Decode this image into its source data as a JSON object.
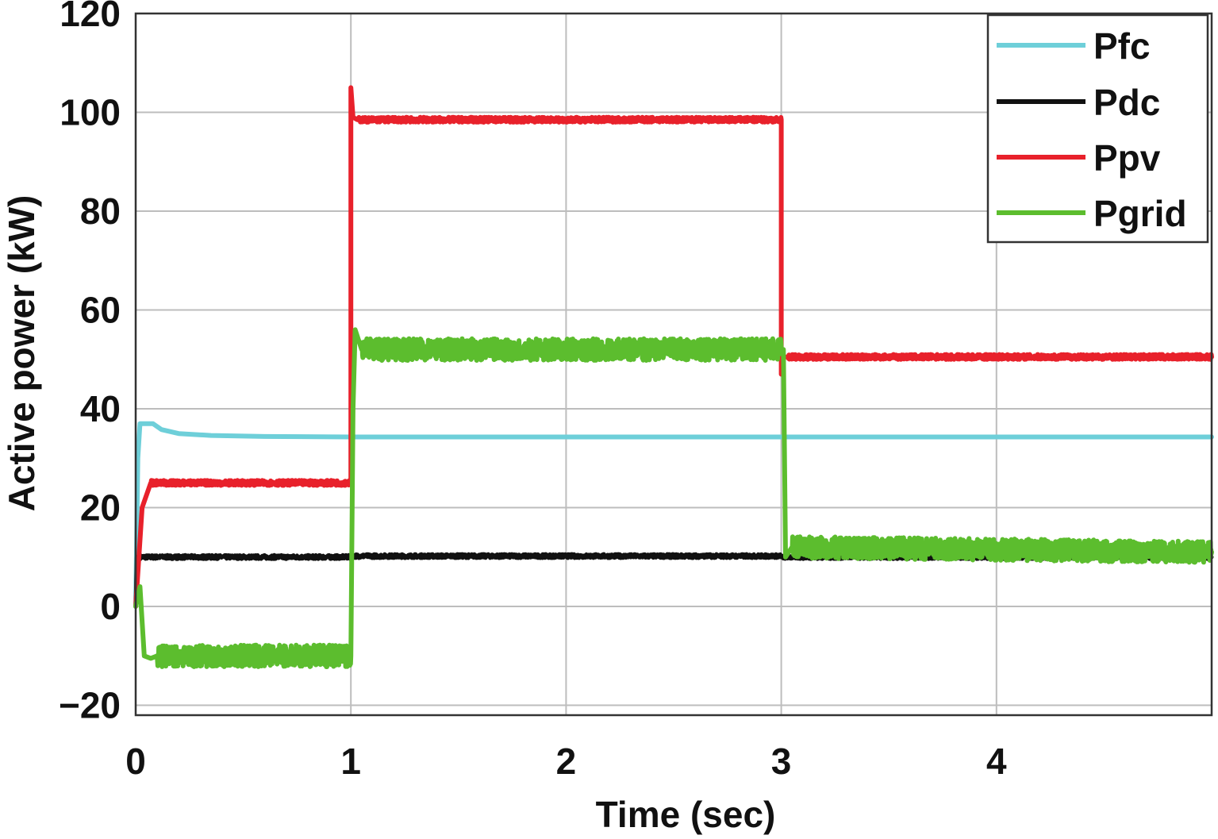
{
  "chart_data": {
    "type": "line",
    "title": "",
    "xlabel": "Time (sec)",
    "ylabel": "Active power (kW)",
    "xlim": [
      0,
      5
    ],
    "ylim": [
      -22,
      120
    ],
    "xticks": [
      0,
      1,
      2,
      3,
      4
    ],
    "yticks": [
      -20,
      0,
      20,
      40,
      60,
      80,
      100,
      120
    ],
    "ytick_labels": [
      "−20",
      "0",
      "20",
      "40",
      "60",
      "80",
      "100",
      "120"
    ],
    "grid": true,
    "legend_position": "top-right",
    "series": [
      {
        "name": "Pfc",
        "color": "#6ecfd9",
        "noise": 0,
        "x": [
          0,
          0.01,
          0.02,
          0.08,
          0.12,
          0.2,
          0.35,
          0.6,
          1.0,
          2.0,
          3.0,
          4.0,
          5.0
        ],
        "y": [
          0,
          30,
          37,
          37,
          35.8,
          35,
          34.6,
          34.4,
          34.3,
          34.3,
          34.3,
          34.3,
          34.3
        ]
      },
      {
        "name": "Pdc",
        "color": "#111111",
        "noise": 0.4,
        "x": [
          0,
          0.005,
          0.02,
          1.0,
          1.01,
          3.0,
          3.005,
          5.0
        ],
        "y": [
          0,
          10,
          10,
          10,
          10.2,
          10.2,
          10,
          10
        ]
      },
      {
        "name": "Ppv",
        "color": "#e8212b",
        "noise": 0.5,
        "x": [
          0,
          0.03,
          0.07,
          1.0,
          1.0,
          1.01,
          1.03,
          3.0,
          3.0,
          3.01,
          3.03,
          5.0
        ],
        "y": [
          0,
          20,
          25,
          25,
          105,
          99,
          98.5,
          98.5,
          47,
          50.5,
          50.5,
          50.5
        ]
      },
      {
        "name": "Pgrid",
        "color": "#5cbd2e",
        "noise": 2.2,
        "x": [
          0,
          0.02,
          0.04,
          0.07,
          0.1,
          1.0,
          1.01,
          1.02,
          1.05,
          3.0,
          3.01,
          3.02,
          3.05,
          5.0
        ],
        "y": [
          0,
          4,
          -10,
          -10.5,
          -10,
          -10,
          40,
          56,
          52,
          52,
          52,
          10,
          12,
          11
        ]
      }
    ]
  }
}
